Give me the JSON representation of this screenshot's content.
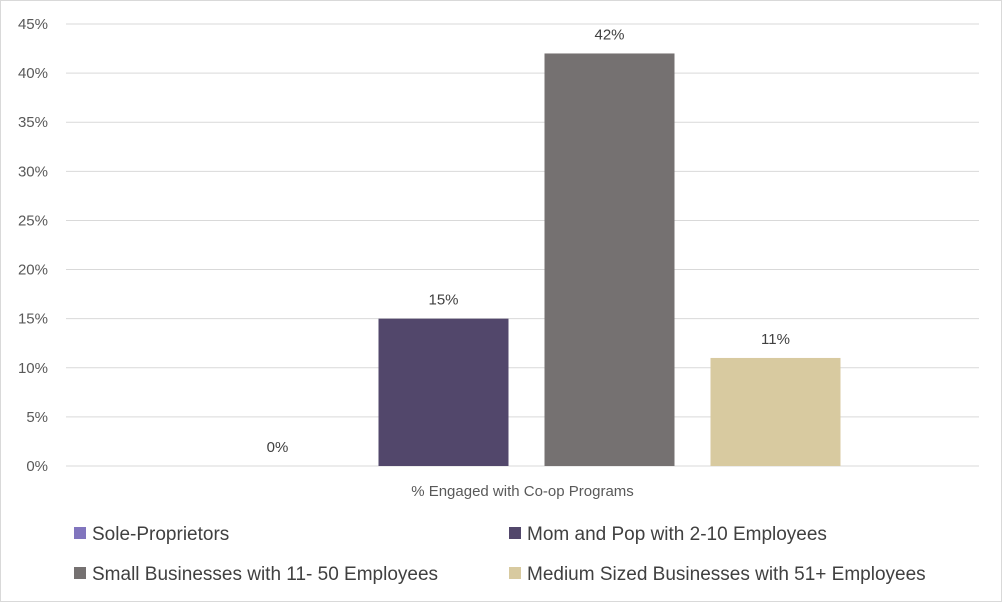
{
  "chart_data": {
    "type": "bar",
    "title": "",
    "xlabel": "",
    "ylabel": "",
    "categories": [
      "% Engaged with Co-op Programs"
    ],
    "series": [
      {
        "name": "Sole-Proprietors",
        "values": [
          0
        ],
        "label": "0%",
        "color": "#8175be"
      },
      {
        "name": "Mom and Pop with 2-10 Employees",
        "values": [
          15
        ],
        "label": "15%",
        "color": "#52476b"
      },
      {
        "name": "Small Businesses with 11- 50 Employees",
        "values": [
          42
        ],
        "label": "42%",
        "color": "#757171"
      },
      {
        "name": "Medium Sized Businesses with 51+ Employees",
        "values": [
          11
        ],
        "label": "11%",
        "color": "#d8caa0"
      }
    ],
    "ylim": [
      0,
      45
    ],
    "yticks": [
      "0%",
      "5%",
      "10%",
      "15%",
      "20%",
      "25%",
      "30%",
      "35%",
      "40%",
      "45%"
    ],
    "grid": true,
    "legend": "bottom",
    "gridline_color": "#d9d9d9"
  }
}
